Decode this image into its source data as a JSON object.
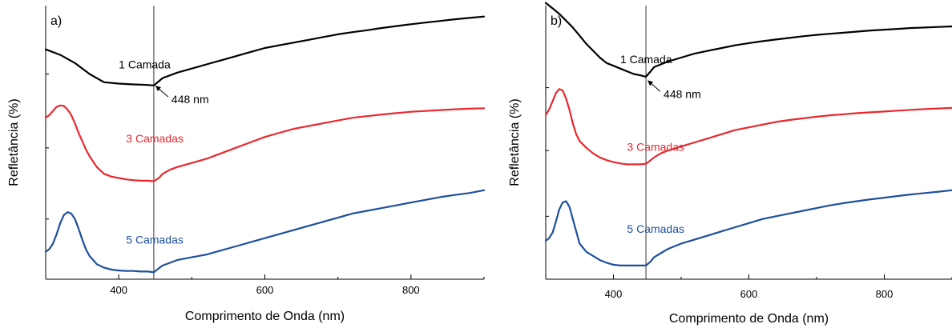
{
  "chart_data": [
    {
      "type": "line",
      "panel_label": "a)",
      "xlabel": "Comprimento de Onda (nm)",
      "ylabel": "Refletância (%)",
      "xlim": [
        300,
        900
      ],
      "ylim": [
        0,
        100
      ],
      "xticks": [
        400,
        600,
        800
      ],
      "minor_xticks": [
        300,
        500,
        700,
        900
      ],
      "yticks": [],
      "y_tick_marks": [
        22,
        48,
        75
      ],
      "grid": false,
      "legend": "none",
      "vline": 448,
      "annotation": {
        "text": "448 nm",
        "x": 448,
        "y": 71
      },
      "series": [
        {
          "name": "1 Camada",
          "color": "#000000",
          "label_at": [
            400,
            77
          ],
          "x": [
            300,
            320,
            340,
            360,
            380,
            400,
            420,
            440,
            448,
            460,
            480,
            500,
            520,
            540,
            560,
            580,
            600,
            620,
            640,
            660,
            680,
            700,
            720,
            740,
            760,
            780,
            800,
            820,
            840,
            860,
            880,
            900
          ],
          "y": [
            84,
            82,
            79,
            75,
            72,
            71.5,
            71.2,
            71,
            70.8,
            73.5,
            75.5,
            77,
            78.5,
            80,
            81.5,
            83,
            84.5,
            85.5,
            86.5,
            87.5,
            88.5,
            89.5,
            90.3,
            91,
            91.8,
            92.5,
            93.2,
            93.8,
            94.4,
            95,
            95.5,
            96
          ]
        },
        {
          "name": "3 Camadas",
          "color": "#e8282e",
          "label_at": [
            410,
            50
          ],
          "x": [
            300,
            305,
            310,
            315,
            320,
            325,
            330,
            335,
            340,
            345,
            350,
            355,
            360,
            370,
            380,
            390,
            400,
            410,
            420,
            430,
            440,
            448,
            455,
            460,
            470,
            480,
            500,
            520,
            540,
            560,
            580,
            600,
            620,
            640,
            660,
            680,
            700,
            720,
            740,
            760,
            780,
            800,
            820,
            840,
            860,
            880,
            900
          ],
          "y": [
            59,
            60,
            61.5,
            63,
            63.5,
            63.3,
            62,
            60,
            57,
            53.5,
            50.5,
            47.5,
            45,
            41,
            38.5,
            37.5,
            37,
            36.5,
            36.2,
            36,
            36,
            35.8,
            37,
            38.5,
            40,
            41,
            42.5,
            44,
            46,
            48,
            50,
            52,
            53.5,
            55,
            56,
            57,
            58,
            59,
            59.6,
            60.2,
            60.7,
            61.2,
            61.5,
            61.8,
            62.1,
            62.3,
            62.5
          ]
        },
        {
          "name": "5 Camadas",
          "color": "#1e4f9c",
          "label_at": [
            410,
            13
          ],
          "x": [
            300,
            305,
            310,
            315,
            320,
            325,
            330,
            335,
            340,
            345,
            350,
            355,
            360,
            370,
            380,
            390,
            400,
            410,
            420,
            430,
            440,
            448,
            455,
            460,
            470,
            480,
            500,
            520,
            540,
            560,
            580,
            600,
            620,
            640,
            660,
            680,
            700,
            720,
            740,
            760,
            780,
            800,
            820,
            840,
            860,
            880,
            900
          ],
          "y": [
            10,
            11,
            13,
            16.5,
            20.5,
            23.5,
            24.5,
            24,
            22,
            18.5,
            14.5,
            11,
            8.5,
            5.5,
            4.2,
            3.5,
            3.2,
            3,
            3,
            2.8,
            2.8,
            2.5,
            4,
            5,
            6,
            7,
            8,
            9,
            10.5,
            12,
            13.5,
            15,
            16.5,
            18,
            19.5,
            21,
            22.5,
            24,
            25,
            26,
            27,
            28,
            29,
            30,
            30.8,
            31.5,
            32.5
          ]
        }
      ]
    },
    {
      "type": "line",
      "panel_label": "b)",
      "xlabel": "Comprimento de Onda (nm)",
      "ylabel": "Refletância (%)",
      "xlim": [
        300,
        900
      ],
      "ylim": [
        0,
        100
      ],
      "xticks": [
        400,
        600,
        800
      ],
      "minor_xticks": [
        300,
        500,
        700,
        900
      ],
      "yticks": [],
      "y_tick_marks": [
        23,
        47,
        70
      ],
      "grid": false,
      "legend": "none",
      "vline": 448,
      "annotation": {
        "text": "448 nm",
        "x": 448,
        "y": 73
      },
      "series": [
        {
          "name": "1 Camada",
          "color": "#000000",
          "label_at": [
            410,
            79
          ],
          "x": [
            300,
            310,
            320,
            330,
            340,
            350,
            360,
            370,
            380,
            390,
            400,
            410,
            420,
            430,
            440,
            448,
            455,
            460,
            470,
            480,
            500,
            520,
            540,
            560,
            580,
            600,
            620,
            640,
            660,
            680,
            700,
            720,
            740,
            760,
            780,
            800,
            820,
            840,
            860,
            880,
            900
          ],
          "y": [
            101,
            99,
            97,
            94.5,
            92,
            89,
            86,
            83.5,
            81,
            79,
            78,
            77,
            76,
            75,
            74.5,
            74,
            76,
            77.5,
            78.5,
            79.5,
            81,
            82.5,
            83.5,
            84.5,
            85.5,
            86.3,
            87,
            87.6,
            88.2,
            88.8,
            89.3,
            89.7,
            90.1,
            90.5,
            90.9,
            91.2,
            91.5,
            91.8,
            92,
            92.2,
            92.4
          ]
        },
        {
          "name": "3 Camadas",
          "color": "#e8282e",
          "label_at": [
            420,
            47
          ],
          "x": [
            300,
            305,
            310,
            315,
            320,
            325,
            330,
            335,
            340,
            345,
            350,
            360,
            370,
            380,
            390,
            400,
            410,
            420,
            430,
            440,
            448,
            455,
            460,
            470,
            480,
            500,
            520,
            540,
            560,
            580,
            600,
            620,
            640,
            660,
            680,
            700,
            720,
            740,
            760,
            780,
            800,
            820,
            840,
            860,
            880,
            900
          ],
          "y": [
            60,
            62,
            65,
            68,
            69.5,
            69,
            66,
            62,
            57,
            53,
            50.5,
            48,
            46,
            44.5,
            43.5,
            42.8,
            42.3,
            42,
            42,
            42,
            42.2,
            43.5,
            44.5,
            46,
            47,
            48.5,
            50,
            51.5,
            53,
            54.5,
            55.5,
            56.5,
            57.5,
            58.2,
            58.8,
            59.4,
            59.9,
            60.3,
            60.7,
            61,
            61.3,
            61.6,
            61.9,
            62.2,
            62.4,
            62.6
          ]
        },
        {
          "name": "5 Camadas",
          "color": "#1e4f9c",
          "label_at": [
            420,
            17
          ],
          "x": [
            300,
            305,
            310,
            315,
            320,
            325,
            330,
            335,
            340,
            345,
            350,
            360,
            370,
            380,
            390,
            400,
            410,
            420,
            430,
            440,
            448,
            455,
            460,
            470,
            480,
            500,
            520,
            540,
            560,
            580,
            600,
            620,
            640,
            660,
            680,
            700,
            720,
            740,
            760,
            780,
            800,
            820,
            840,
            860,
            880,
            900
          ],
          "y": [
            14,
            15,
            17,
            21,
            25.5,
            28,
            28.5,
            26.5,
            22,
            17.5,
            13,
            10,
            8.5,
            7,
            6,
            5.3,
            5,
            5,
            5,
            5,
            5,
            6.5,
            8,
            9.5,
            11,
            13,
            14.5,
            16,
            17.5,
            19,
            20.5,
            22,
            23,
            24,
            25,
            26,
            27,
            27.8,
            28.5,
            29.2,
            29.8,
            30.4,
            31,
            31.5,
            32,
            32.5
          ]
        }
      ]
    }
  ]
}
